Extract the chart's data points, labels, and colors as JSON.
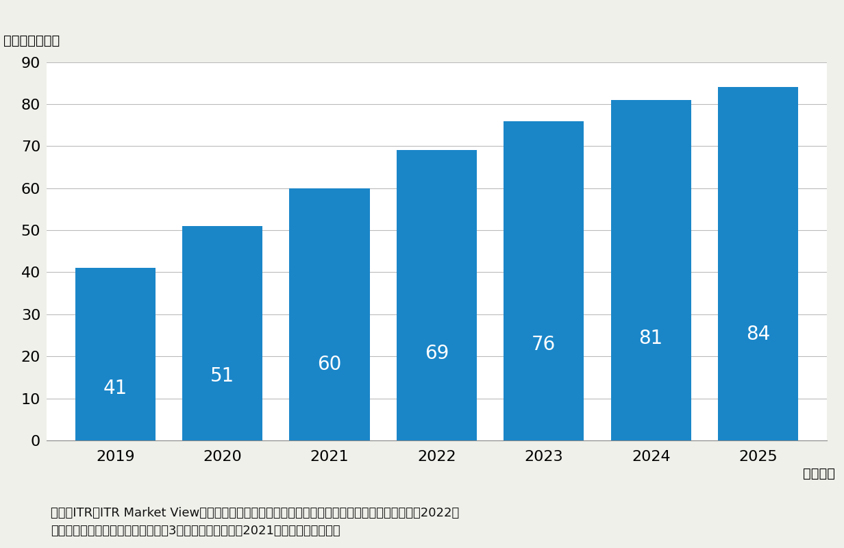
{
  "categories": [
    "2019",
    "2020",
    "2021",
    "2022",
    "2023",
    "2024",
    "2025"
  ],
  "values": [
    41,
    51,
    60,
    69,
    76,
    81,
    84
  ],
  "bar_color": "#1a86c8",
  "ylim": [
    0,
    90
  ],
  "yticks": [
    0,
    10,
    20,
    30,
    40,
    50,
    60,
    70,
    80,
    90
  ],
  "ylabel_top": "（単位：億円）",
  "xlabel_right": "（年度）",
  "label_color": "#ffffff",
  "label_fontsize": 20,
  "tick_fontsize": 16,
  "axis_label_fontsize": 14,
  "source_line1": "出典：ITR『ITR Market View：アイデンティティ・アクセス管理／個人認証型セキュリティ市場202​2』",
  "source_line2": "＊ベンダーの売上金額を対象とし、3月期ベースで换算　2021年度以降は予測値。",
  "source_fontsize": 13,
  "background_color": "#f0f0eb",
  "plot_background_color": "#ffffff",
  "bar_width": 0.75
}
